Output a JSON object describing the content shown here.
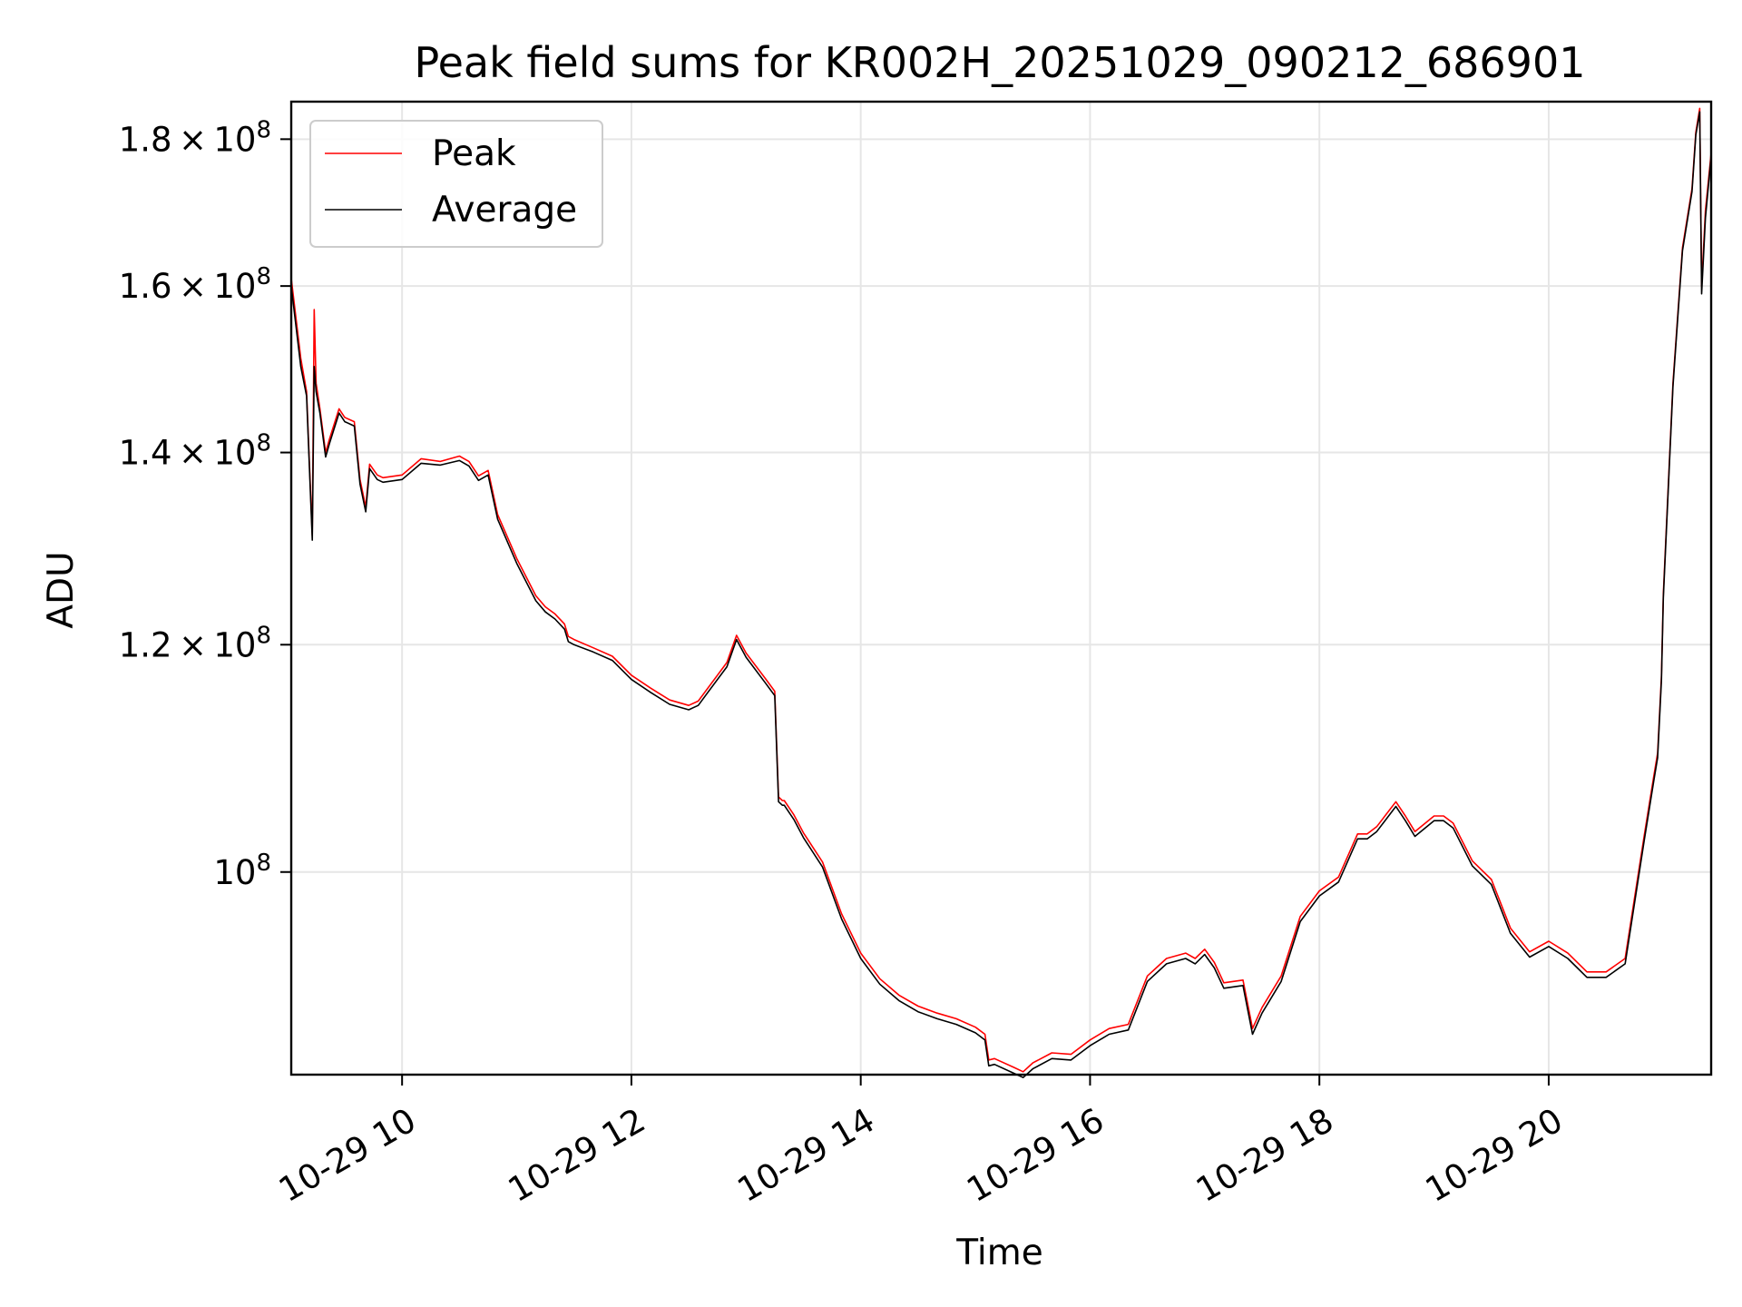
{
  "chart_data": {
    "type": "line",
    "title": "Peak field sums for KR002H_20251029_090212_686901",
    "xlabel": "Time",
    "ylabel": "ADU",
    "yscale": "log",
    "xlim": [
      "10-29 09:02",
      "10-29 21:25"
    ],
    "ylim": [
      85000000,
      185500000
    ],
    "grid": true,
    "legend": {
      "position": "top-left",
      "entries": [
        "Peak",
        "Average"
      ]
    },
    "x_ticks": [
      {
        "label": "10-29 10",
        "value": "10-29 10:00"
      },
      {
        "label": "10-29 12",
        "value": "10-29 12:00"
      },
      {
        "label": "10-29 14",
        "value": "10-29 14:00"
      },
      {
        "label": "10-29 16",
        "value": "10-29 16:00"
      },
      {
        "label": "10-29 18",
        "value": "10-29 18:00"
      },
      {
        "label": "10-29 20",
        "value": "10-29 20:00"
      }
    ],
    "y_ticks": [
      {
        "mant": "1.8",
        "exp": "8",
        "value": 180000000
      },
      {
        "mant": "1.6",
        "exp": "8",
        "value": 160000000
      },
      {
        "mant": "1.4",
        "exp": "8",
        "value": 140000000
      },
      {
        "mant": "1.2",
        "exp": "8",
        "value": 120000000
      },
      {
        "mant": "",
        "exp": "8",
        "value": 100000000
      }
    ],
    "series": [
      {
        "name": "Peak",
        "color": "#ff0000",
        "x": [
          "10-29 09:02",
          "10-29 09:07",
          "10-29 09:10",
          "10-29 09:13",
          "10-29 09:14",
          "10-29 09:15",
          "10-29 09:17",
          "10-29 09:20",
          "10-29 09:22",
          "10-29 09:27",
          "10-29 09:30",
          "10-29 09:35",
          "10-29 09:38",
          "10-29 09:41",
          "10-29 09:43",
          "10-29 09:47",
          "10-29 09:50",
          "10-29 10:00",
          "10-29 10:10",
          "10-29 10:20",
          "10-29 10:30",
          "10-29 10:35",
          "10-29 10:40",
          "10-29 10:45",
          "10-29 10:50",
          "10-29 11:00",
          "10-29 11:10",
          "10-29 11:15",
          "10-29 11:20",
          "10-29 11:25",
          "10-29 11:27",
          "10-29 11:30",
          "10-29 11:40",
          "10-29 11:50",
          "10-29 12:00",
          "10-29 12:10",
          "10-29 12:20",
          "10-29 12:30",
          "10-29 12:35",
          "10-29 12:40",
          "10-29 12:50",
          "10-29 12:55",
          "10-29 13:00",
          "10-29 13:10",
          "10-29 13:15",
          "10-29 13:17",
          "10-29 13:19",
          "10-29 13:20",
          "10-29 13:25",
          "10-29 13:30",
          "10-29 13:40",
          "10-29 13:50",
          "10-29 14:00",
          "10-29 14:10",
          "10-29 14:20",
          "10-29 14:30",
          "10-29 14:40",
          "10-29 14:50",
          "10-29 15:00",
          "10-29 15:05",
          "10-29 15:07",
          "10-29 15:10",
          "10-29 15:20",
          "10-29 15:25",
          "10-29 15:30",
          "10-29 15:40",
          "10-29 15:50",
          "10-29 16:00",
          "10-29 16:10",
          "10-29 16:20",
          "10-29 16:30",
          "10-29 16:40",
          "10-29 16:50",
          "10-29 16:55",
          "10-29 17:00",
          "10-29 17:05",
          "10-29 17:10",
          "10-29 17:20",
          "10-29 17:25",
          "10-29 17:30",
          "10-29 17:40",
          "10-29 17:50",
          "10-29 18:00",
          "10-29 18:10",
          "10-29 18:20",
          "10-29 18:25",
          "10-29 18:30",
          "10-29 18:40",
          "10-29 18:45",
          "10-29 18:50",
          "10-29 19:00",
          "10-29 19:05",
          "10-29 19:10",
          "10-29 19:20",
          "10-29 19:30",
          "10-29 19:40",
          "10-29 19:50",
          "10-29 20:00",
          "10-29 20:10",
          "10-29 20:20",
          "10-29 20:30",
          "10-29 20:40",
          "10-29 20:50",
          "10-29 20:55",
          "10-29 20:57",
          "10-29 20:59",
          "10-29 21:00",
          "10-29 21:05",
          "10-29 21:10",
          "10-29 21:15",
          "10-29 21:17",
          "10-29 21:19",
          "10-29 21:20",
          "10-29 21:22",
          "10-29 21:25"
        ],
        "values": [
          161000000,
          151000000,
          147000000,
          131000000,
          157000000,
          148000000,
          145000000,
          140000000,
          141500000,
          145000000,
          144000000,
          143500000,
          137000000,
          134000000,
          138700000,
          137500000,
          137200000,
          137500000,
          139300000,
          139000000,
          139600000,
          139000000,
          137400000,
          138000000,
          133200000,
          128600000,
          124800000,
          123700000,
          123000000,
          122000000,
          120800000,
          120500000,
          119700000,
          118900000,
          117100000,
          115900000,
          114800000,
          114300000,
          114700000,
          115900000,
          118300000,
          120900000,
          119200000,
          116800000,
          115600000,
          106200000,
          105900000,
          105900000,
          104700000,
          103200000,
          100800000,
          96700000,
          93700000,
          91800000,
          90600000,
          89800000,
          89300000,
          88900000,
          88300000,
          87800000,
          86000000,
          86100000,
          85500000,
          85200000,
          85800000,
          86500000,
          86400000,
          87400000,
          88200000,
          88500000,
          92000000,
          93300000,
          93700000,
          93300000,
          94000000,
          93000000,
          91500000,
          91700000,
          88200000,
          89700000,
          92000000,
          96500000,
          98500000,
          99600000,
          103100000,
          103100000,
          103700000,
          105800000,
          104600000,
          103300000,
          104600000,
          104600000,
          104000000,
          100900000,
          99400000,
          95600000,
          93800000,
          94600000,
          93700000,
          92300000,
          92300000,
          93300000,
          103000000,
          108000000,
          110000000,
          117000000,
          125000000,
          148000000,
          165000000,
          173000000,
          181000000,
          184500000,
          160000000,
          170000000,
          178000000
        ]
      },
      {
        "name": "Average",
        "color": "#000000",
        "x": [
          "10-29 09:02",
          "10-29 09:07",
          "10-29 09:10",
          "10-29 09:13",
          "10-29 09:14",
          "10-29 09:15",
          "10-29 09:17",
          "10-29 09:20",
          "10-29 09:22",
          "10-29 09:27",
          "10-29 09:30",
          "10-29 09:35",
          "10-29 09:38",
          "10-29 09:41",
          "10-29 09:43",
          "10-29 09:47",
          "10-29 09:50",
          "10-29 10:00",
          "10-29 10:10",
          "10-29 10:20",
          "10-29 10:30",
          "10-29 10:35",
          "10-29 10:40",
          "10-29 10:45",
          "10-29 10:50",
          "10-29 11:00",
          "10-29 11:10",
          "10-29 11:15",
          "10-29 11:20",
          "10-29 11:25",
          "10-29 11:27",
          "10-29 11:30",
          "10-29 11:40",
          "10-29 11:50",
          "10-29 12:00",
          "10-29 12:10",
          "10-29 12:20",
          "10-29 12:30",
          "10-29 12:35",
          "10-29 12:40",
          "10-29 12:50",
          "10-29 12:55",
          "10-29 13:00",
          "10-29 13:10",
          "10-29 13:15",
          "10-29 13:17",
          "10-29 13:19",
          "10-29 13:20",
          "10-29 13:25",
          "10-29 13:30",
          "10-29 13:40",
          "10-29 13:50",
          "10-29 14:00",
          "10-29 14:10",
          "10-29 14:20",
          "10-29 14:30",
          "10-29 14:40",
          "10-29 14:50",
          "10-29 15:00",
          "10-29 15:05",
          "10-29 15:07",
          "10-29 15:10",
          "10-29 15:20",
          "10-29 15:25",
          "10-29 15:30",
          "10-29 15:40",
          "10-29 15:50",
          "10-29 16:00",
          "10-29 16:10",
          "10-29 16:20",
          "10-29 16:30",
          "10-29 16:40",
          "10-29 16:50",
          "10-29 16:55",
          "10-29 17:00",
          "10-29 17:05",
          "10-29 17:10",
          "10-29 17:20",
          "10-29 17:25",
          "10-29 17:30",
          "10-29 17:40",
          "10-29 17:50",
          "10-29 18:00",
          "10-29 18:10",
          "10-29 18:20",
          "10-29 18:25",
          "10-29 18:30",
          "10-29 18:40",
          "10-29 18:45",
          "10-29 18:50",
          "10-29 19:00",
          "10-29 19:05",
          "10-29 19:10",
          "10-29 19:20",
          "10-29 19:30",
          "10-29 19:40",
          "10-29 19:50",
          "10-29 20:00",
          "10-29 20:10",
          "10-29 20:20",
          "10-29 20:30",
          "10-29 20:40",
          "10-29 20:50",
          "10-29 20:55",
          "10-29 20:57",
          "10-29 20:59",
          "10-29 21:00",
          "10-29 21:05",
          "10-29 21:10",
          "10-29 21:15",
          "10-29 21:17",
          "10-29 21:19",
          "10-29 21:20",
          "10-29 21:22",
          "10-29 21:25"
        ],
        "values": [
          160000000,
          150000000,
          146500000,
          130500000,
          150000000,
          147000000,
          144500000,
          139500000,
          141000000,
          144500000,
          143500000,
          143000000,
          136500000,
          133500000,
          138200000,
          137000000,
          136700000,
          137000000,
          138800000,
          138600000,
          139100000,
          138500000,
          136900000,
          137500000,
          132700000,
          128100000,
          124300000,
          123200000,
          122500000,
          121500000,
          120300000,
          120000000,
          119300000,
          118500000,
          116700000,
          115500000,
          114400000,
          113900000,
          114300000,
          115500000,
          117900000,
          120500000,
          118800000,
          116400000,
          115200000,
          105800000,
          105500000,
          105500000,
          104300000,
          102800000,
          100400000,
          96300000,
          93300000,
          91400000,
          90200000,
          89400000,
          88900000,
          88500000,
          87900000,
          87400000,
          85600000,
          85700000,
          85100000,
          84800000,
          85400000,
          86100000,
          86000000,
          87000000,
          87800000,
          88100000,
          91600000,
          92900000,
          93300000,
          92900000,
          93600000,
          92600000,
          91100000,
          91300000,
          87800000,
          89300000,
          91600000,
          96100000,
          98100000,
          99200000,
          102700000,
          102700000,
          103300000,
          105400000,
          104200000,
          102900000,
          104200000,
          104200000,
          103600000,
          100500000,
          99000000,
          95200000,
          93400000,
          94200000,
          93300000,
          91900000,
          91900000,
          92900000,
          102600000,
          107600000,
          109600000,
          116600000,
          124600000,
          147600000,
          164600000,
          172600000,
          180600000,
          184000000,
          159000000,
          169000000,
          177500000
        ]
      }
    ]
  }
}
